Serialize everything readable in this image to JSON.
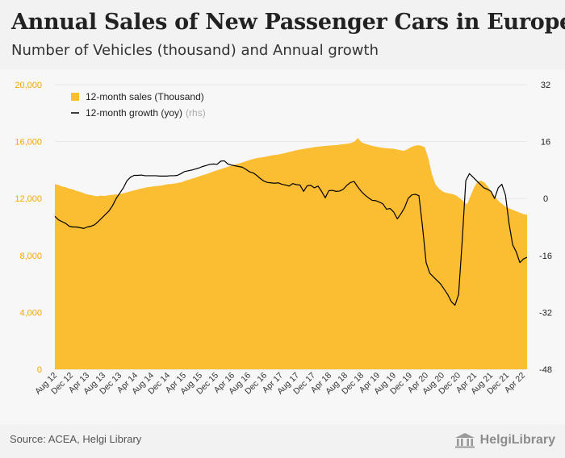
{
  "header": {
    "title": "Annual Sales of New Passenger Cars in Europe",
    "subtitle": "Number of Vehicles (thousand) and Annual growth"
  },
  "footer": {
    "source": "Source: ACEA, Helgi Library",
    "brand": "HelgiLibrary",
    "brand_icon": "building-columns-icon"
  },
  "colors": {
    "area": "#fbbd32",
    "line": "#000000",
    "left_axis": "#f1a800",
    "right_axis": "#222222",
    "grid": "#e6e6e6"
  },
  "chart_data": {
    "type": "area",
    "legend": {
      "placement": "top-left",
      "entries": [
        {
          "label": "12-month sales (Thousand)",
          "marker": "area"
        },
        {
          "label": "12-month growth (yoy)",
          "suffix": "(rhs)",
          "marker": "line"
        }
      ]
    },
    "y_left": {
      "range": [
        0,
        20000
      ],
      "ticks": [
        0,
        4000,
        8000,
        12000,
        16000,
        20000
      ],
      "tick_labels": [
        "0",
        "4,000",
        "8,000",
        "12,000",
        "16,000",
        "20,000"
      ]
    },
    "y_right": {
      "range": [
        -48,
        32
      ],
      "ticks": [
        -48,
        -32,
        -16,
        0,
        16,
        32
      ],
      "tick_labels": [
        "-48",
        "-32",
        "-16",
        "0",
        "16",
        "32"
      ]
    },
    "x_labels": [
      "Aug 12",
      "Dec 12",
      "Apr 13",
      "Aug 13",
      "Dec 13",
      "Apr 14",
      "Aug 14",
      "Dec 14",
      "Apr 15",
      "Aug 15",
      "Dec 15",
      "Apr 16",
      "Aug 16",
      "Dec 16",
      "Apr 17",
      "Aug 17",
      "Dec 17",
      "Apr 18",
      "Aug 18",
      "Dec 18",
      "Apr 19",
      "Aug 19",
      "Dec 19",
      "Apr 20",
      "Aug 20",
      "Dec 20",
      "Apr 21",
      "Aug 21",
      "Dec 21",
      "Apr 22"
    ],
    "grid": true,
    "series": [
      {
        "name": "12-month sales (Thousand)",
        "axis": "left",
        "values": [
          13000,
          12950,
          12850,
          12800,
          12700,
          12650,
          12550,
          12480,
          12400,
          12300,
          12250,
          12200,
          12150,
          12200,
          12180,
          12220,
          12250,
          12280,
          12300,
          12350,
          12400,
          12480,
          12550,
          12600,
          12680,
          12720,
          12780,
          12820,
          12850,
          12880,
          12900,
          12950,
          13000,
          13020,
          13060,
          13100,
          13150,
          13250,
          13320,
          13400,
          13480,
          13560,
          13640,
          13720,
          13800,
          13900,
          13980,
          14060,
          14140,
          14220,
          14300,
          14380,
          14450,
          14520,
          14600,
          14680,
          14760,
          14820,
          14870,
          14900,
          14950,
          15000,
          15050,
          15080,
          15120,
          15180,
          15240,
          15300,
          15360,
          15420,
          15460,
          15500,
          15540,
          15580,
          15620,
          15650,
          15680,
          15700,
          15720,
          15740,
          15760,
          15790,
          15820,
          15850,
          15900,
          16000,
          16250,
          15950,
          15850,
          15780,
          15700,
          15650,
          15600,
          15560,
          15540,
          15520,
          15500,
          15450,
          15400,
          15350,
          15450,
          15600,
          15700,
          15750,
          15700,
          15600,
          14800,
          13700,
          13000,
          12700,
          12500,
          12400,
          12350,
          12300,
          12200,
          12000,
          11800,
          11600,
          12200,
          12800,
          13200,
          13250,
          13100,
          12800,
          12400,
          12100,
          11800,
          11600,
          11400,
          11300,
          11200,
          11100,
          11000,
          10900,
          10850
        ]
      },
      {
        "name": "12-month growth (yoy)",
        "axis": "right",
        "values": [
          -5,
          -6,
          -6.5,
          -7,
          -7.8,
          -8,
          -8,
          -8.2,
          -8.4,
          -8,
          -7.8,
          -7.4,
          -6.5,
          -5.5,
          -4.5,
          -3.5,
          -2,
          0,
          1.5,
          3,
          5,
          6,
          6.5,
          6.5,
          6.6,
          6.4,
          6.4,
          6.4,
          6.4,
          6.3,
          6.3,
          6.3,
          6.4,
          6.4,
          6.5,
          7,
          7.6,
          7.8,
          8.0,
          8.3,
          8.6,
          9.0,
          9.3,
          9.6,
          9.7,
          9.6,
          10.5,
          10.6,
          9.7,
          9.4,
          9.2,
          9.0,
          8.8,
          8.2,
          7.5,
          7.2,
          6.5,
          5.6,
          4.9,
          4.5,
          4.4,
          4.3,
          4.4,
          4.0,
          3.8,
          3.5,
          4.2,
          3.9,
          3.8,
          2.0,
          3.6,
          3.7,
          3.0,
          3.5,
          2.0,
          0.2,
          2.2,
          2.3,
          2.0,
          2.1,
          2.6,
          3.7,
          4.5,
          4.8,
          3.3,
          2.0,
          1.0,
          0.2,
          -0.5,
          -0.6,
          -1,
          -1.5,
          -3,
          -2.8,
          -3.8,
          -5.7,
          -4.3,
          -2.6,
          0,
          1,
          1.2,
          0.8,
          -8,
          -18,
          -21,
          -22,
          -23,
          -24,
          -25.5,
          -27,
          -29,
          -30,
          -27,
          -12,
          5,
          7,
          6,
          5,
          4,
          3,
          2.6,
          2,
          0,
          3,
          4,
          1,
          -7,
          -13,
          -15,
          -18,
          -17,
          -16.5
        ]
      }
    ]
  }
}
